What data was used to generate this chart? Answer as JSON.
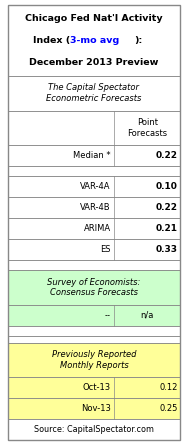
{
  "title_line1": "Chicago Fed Nat'l Activity",
  "title_line2_black1": "Index (",
  "title_line2_blue": "3-mo avg",
  "title_line2_black2": "):",
  "title_line3": "December 2013 Preview",
  "section1_header": "The Capital Spectator\nEconometric Forecasts",
  "col_header": "Point\nForecasts",
  "median_label": "Median *",
  "median_value": "0.22",
  "model_rows": [
    [
      "VAR-4A",
      "0.10"
    ],
    [
      "VAR-4B",
      "0.22"
    ],
    [
      "ARIMA",
      "0.21"
    ],
    [
      "ES",
      "0.33"
    ]
  ],
  "section2_header": "Survey of Economists:\nConsensus Forecasts",
  "consensus_label": "--",
  "consensus_value": "n/a",
  "section3_header": "Previously Reported\nMonthly Reports",
  "monthly_rows": [
    [
      "Oct-13",
      "0.12"
    ],
    [
      "Nov-13",
      "0.25"
    ]
  ],
  "source": "Source: CapitalSpectator.com",
  "bg_white": "#ffffff",
  "bg_green": "#ccffcc",
  "bg_yellow": "#ffff99",
  "border_color": "#888888",
  "col_split": 0.615,
  "fig_w": 1.88,
  "fig_h": 4.45,
  "dpi": 100
}
